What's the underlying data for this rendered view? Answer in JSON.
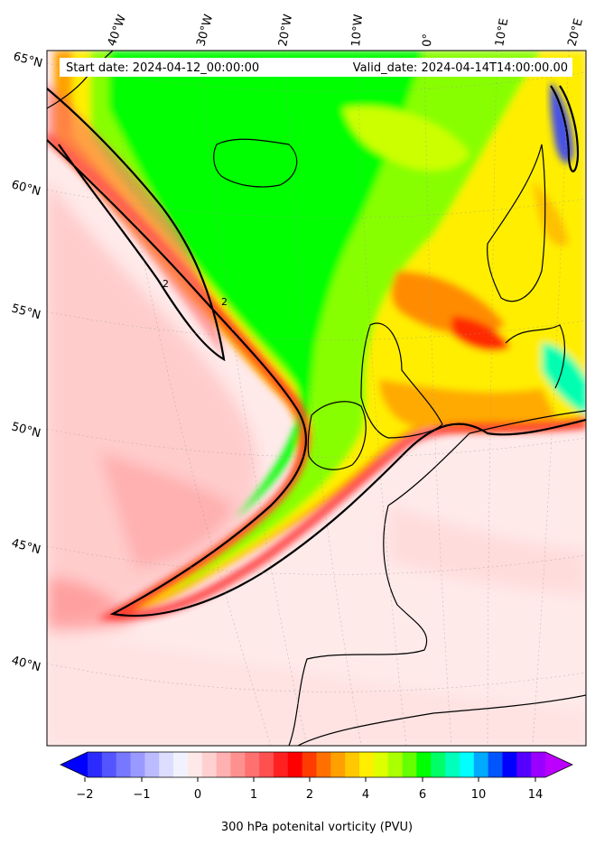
{
  "header": {
    "start_date": "Start date: 2024-04-12_00:00:00",
    "valid_date": "Valid_date: 2024-04-14T14:00:00.00"
  },
  "map": {
    "projection": "lambert-conformal",
    "lon_labels": [
      "40°W",
      "30°W",
      "20°W",
      "10°W",
      "0°",
      "10°E",
      "20°E"
    ],
    "lat_labels": [
      "65°N",
      "60°N",
      "55°N",
      "50°N",
      "45°N",
      "40°N"
    ],
    "contour_labels": [
      "2",
      "2"
    ],
    "gridlines": true
  },
  "colorbar": {
    "label": "300 hPa potenital vorticity (PVU)",
    "ticks": [
      "−2",
      "−1",
      "0",
      "1",
      "2",
      "4",
      "6",
      "10",
      "14"
    ],
    "extend": "both",
    "colors": [
      "#0000ff",
      "#2b2bff",
      "#5555ff",
      "#7777ff",
      "#9999ff",
      "#bbbbff",
      "#ddddff",
      "#f2f2ff",
      "#ffe8e8",
      "#ffd0d0",
      "#ffb0b0",
      "#ff9090",
      "#ff7070",
      "#ff5050",
      "#ff2020",
      "#ff0000",
      "#ff3c00",
      "#ff7000",
      "#ffa000",
      "#ffc800",
      "#ffee00",
      "#ddff00",
      "#aaff00",
      "#66ff00",
      "#00ff00",
      "#00ff66",
      "#00ffbb",
      "#00ffff",
      "#00aaff",
      "#0055ff",
      "#0000ff",
      "#5500ff",
      "#9900ff",
      "#bb00ff"
    ]
  }
}
